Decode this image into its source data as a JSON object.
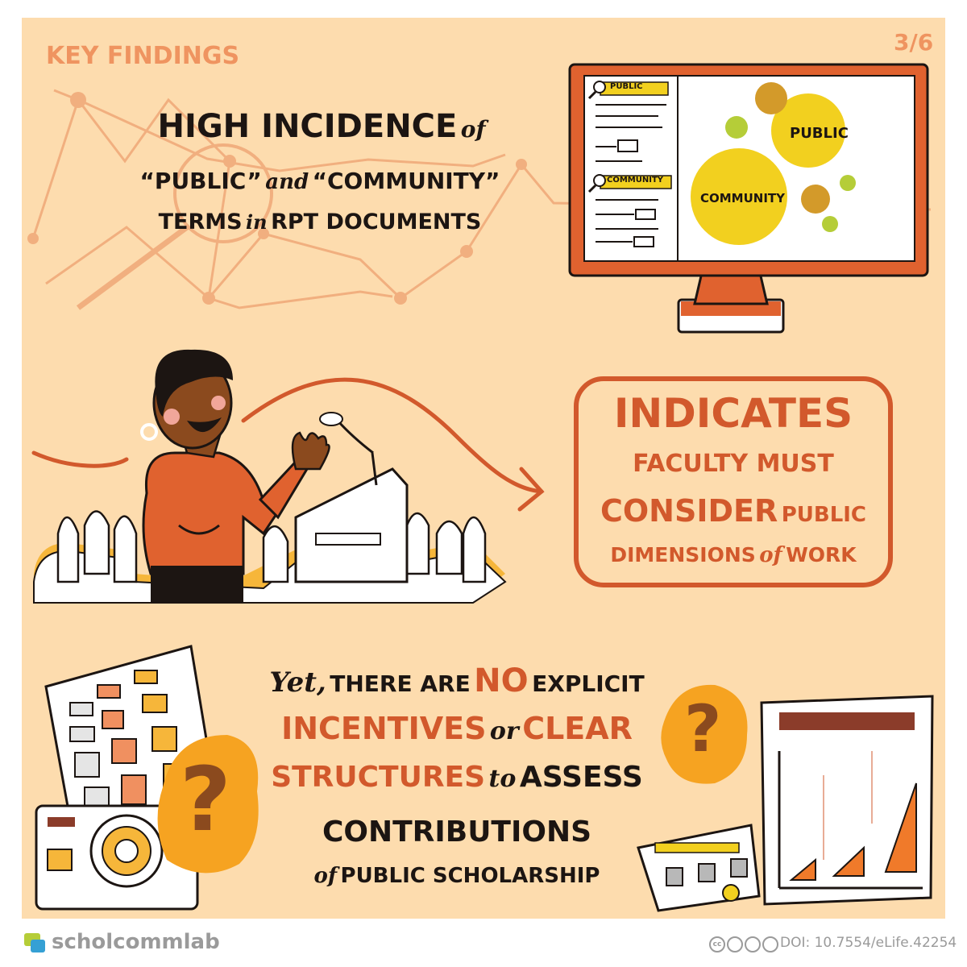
{
  "header": {
    "section_label": "KEY FINDINGS",
    "page_indicator": "3/6"
  },
  "finding": {
    "line1_main": "HIGH INCIDENCE",
    "line1_join": "of",
    "line2_a": "“PUBLIC”",
    "line2_join": "and",
    "line2_b": "“COMMUNITY”",
    "line3_a": "TERMS",
    "line3_join": "in",
    "line3_b": "RPT DOCUMENTS"
  },
  "monitor": {
    "sidebar_tag_1": "PUBLIC",
    "sidebar_tag_2": "COMMUNITY",
    "bubble_public": "PUBLIC",
    "bubble_community": "COMMUNITY"
  },
  "indicates": {
    "heading": "INDICATES",
    "line2": "FACULTY MUST",
    "line3_a": "CONSIDER",
    "line3_b": "PUBLIC",
    "line4_a": "DIMENSIONS",
    "line4_join": "of",
    "line4_b": "WORK"
  },
  "conclusion": {
    "yet": "Yet,",
    "l1_a": "THERE ARE",
    "l1_no": "NO",
    "l1_b": "EXPLICIT",
    "l2_a": "INCENTIVES",
    "l2_join": "or",
    "l2_b": "CLEAR",
    "l3_a": "STRUCTURES",
    "l3_join": "to",
    "l3_b": "ASSESS",
    "l4": "CONTRIBUTIONS",
    "l5_join": "of",
    "l5_b": "PUBLIC SCHOLARSHIP"
  },
  "question_marks": [
    "?",
    "?"
  ],
  "footer": {
    "brand_prefix": "schol",
    "brand_suffix": "commlab",
    "license_icons": "cc-by-nc-sa-icon",
    "doi": "DOI: 10.7554/eLife.42254"
  },
  "colors": {
    "background": "#fddcae",
    "accent_orange": "#d2592c",
    "yellow": "#f2d01f",
    "dark": "#1c1512",
    "faded_graph": "#f0a877",
    "brand_gray": "#9a9a9a"
  }
}
